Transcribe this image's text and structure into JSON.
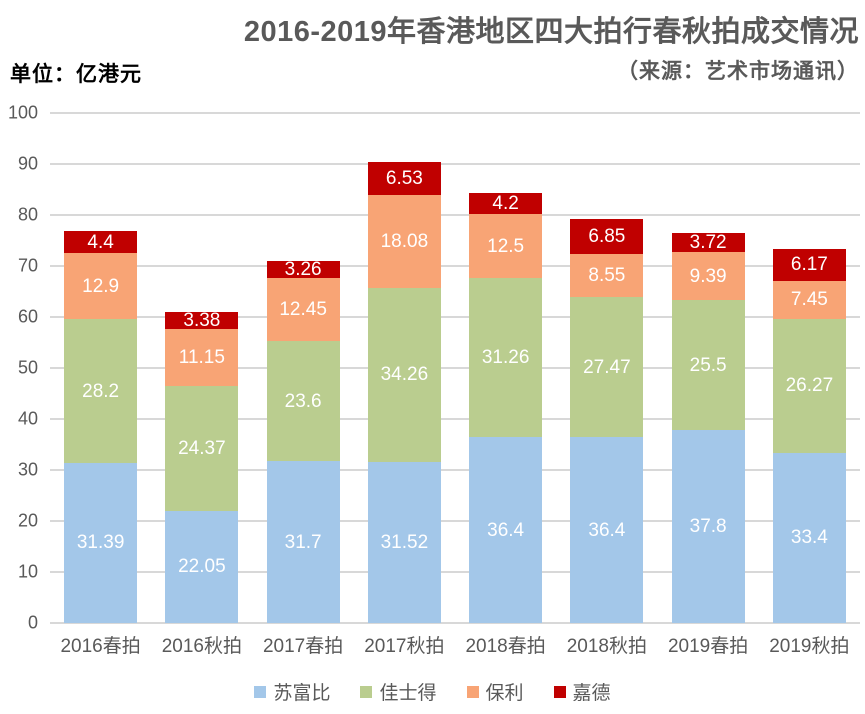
{
  "header": {
    "unit_label": "单位：亿港元",
    "title": "2016-2019年香港地区四大拍行春秋拍成交情况",
    "subtitle": "（来源：艺术市场通讯）"
  },
  "chart_data": {
    "type": "bar",
    "stacked": true,
    "title": "2016-2019年香港地区四大拍行春秋拍成交情况",
    "subtitle": "（来源：艺术市场通讯）",
    "unit": "亿港元",
    "categories": [
      "2016春拍",
      "2016秋拍",
      "2017春拍",
      "2017秋拍",
      "2018春拍",
      "2018秋拍",
      "2019春拍",
      "2019秋拍"
    ],
    "series": [
      {
        "id": "sothebys",
        "name": "苏富比",
        "color": "#a3c7e9",
        "values": [
          31.39,
          22.05,
          31.7,
          31.52,
          36.4,
          36.4,
          37.8,
          33.4
        ]
      },
      {
        "id": "christies",
        "name": "佳士得",
        "color": "#bacd8f",
        "values": [
          28.2,
          24.37,
          23.6,
          34.26,
          31.26,
          27.47,
          25.5,
          26.27
        ]
      },
      {
        "id": "poly",
        "name": "保利",
        "color": "#f8a475",
        "values": [
          12.9,
          11.15,
          12.45,
          18.08,
          12.5,
          8.55,
          9.39,
          7.45
        ]
      },
      {
        "id": "china-guardian",
        "name": "嘉德",
        "color": "#c00000",
        "values": [
          4.4,
          3.38,
          3.26,
          6.53,
          4.2,
          6.85,
          3.72,
          6.17
        ]
      }
    ],
    "ylim": [
      0,
      100
    ],
    "ytick_step": 10,
    "grid": true,
    "legend_position": "bottom",
    "value_label_color": "#ffffff",
    "axis_text_color": "#595959",
    "gridline_color": "#d8d8d8"
  }
}
